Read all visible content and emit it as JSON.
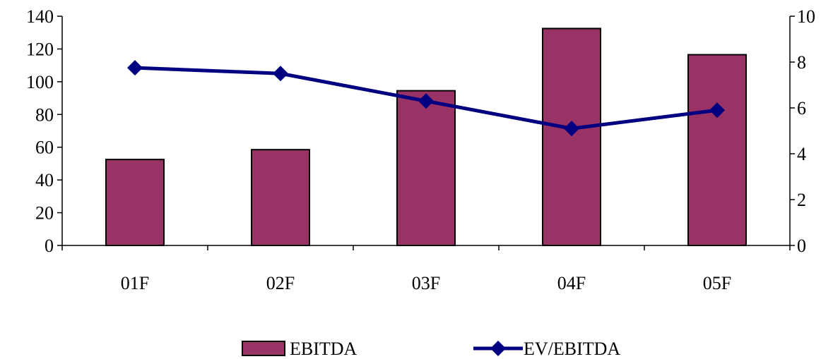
{
  "chart_data": {
    "type": "bar",
    "categories": [
      "01F",
      "02F",
      "03F",
      "04F",
      "05F"
    ],
    "series": [
      {
        "name": "EBITDA",
        "type": "bar",
        "axis": "left",
        "values": [
          52.5,
          58.5,
          94.5,
          132.5,
          116.5
        ],
        "color": "#993366"
      },
      {
        "name": "EV/EBITDA",
        "type": "line",
        "axis": "right",
        "marker": "diamond",
        "values": [
          7.75,
          7.5,
          6.3,
          5.1,
          5.9
        ],
        "color": "#000080"
      }
    ],
    "y_left": {
      "min": 0,
      "max": 140,
      "ticks": [
        0,
        20,
        40,
        60,
        80,
        100,
        120,
        140
      ]
    },
    "y_right": {
      "min": 0,
      "max": 10,
      "ticks": [
        0,
        2,
        4,
        6,
        8,
        10
      ]
    },
    "title": "",
    "xlabel": "",
    "ylabel": "",
    "grid": false,
    "legend_position": "bottom"
  }
}
